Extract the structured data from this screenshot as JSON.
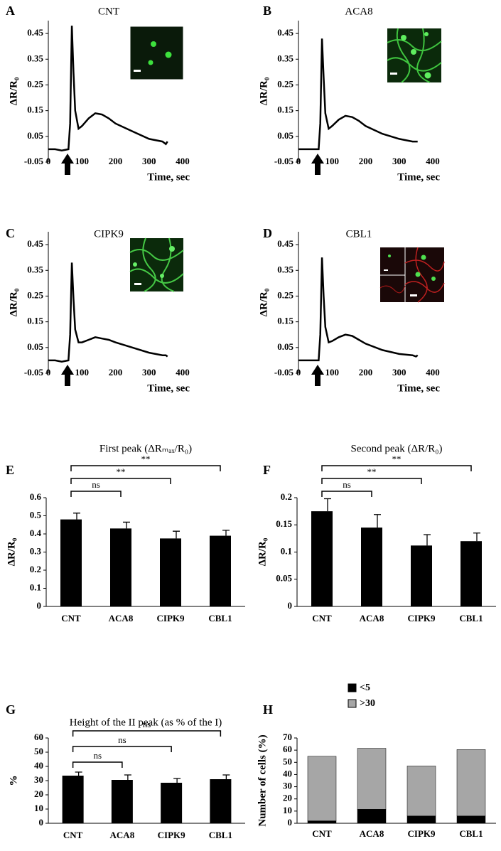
{
  "chart_data": [
    {
      "type": "line",
      "panel": "A",
      "title": "CNT",
      "xlabel": "Time, sec",
      "ylabel": "ΔR/R₀",
      "x": [
        0,
        20,
        40,
        60,
        65,
        70,
        75,
        80,
        90,
        100,
        120,
        140,
        160,
        180,
        200,
        250,
        300,
        340,
        350,
        355
      ],
      "series": [
        {
          "color": "#000000",
          "values": [
            0,
            0,
            -0.005,
            0,
            0.1,
            0.48,
            0.3,
            0.15,
            0.08,
            0.09,
            0.12,
            0.14,
            0.135,
            0.12,
            0.1,
            0.07,
            0.04,
            0.03,
            0.02,
            0.03
          ]
        }
      ],
      "xlim": [
        0,
        400
      ],
      "xticks": [
        0,
        100,
        200,
        300,
        400
      ],
      "ylim": [
        -0.05,
        0.5
      ],
      "yticks": [
        -0.05,
        0.05,
        0.15,
        0.25,
        0.35,
        0.45
      ]
    },
    {
      "type": "line",
      "panel": "B",
      "title": "ACA8",
      "xlabel": "Time, sec",
      "ylabel": "ΔR/R₀",
      "x": [
        0,
        20,
        40,
        60,
        65,
        70,
        75,
        80,
        90,
        100,
        120,
        140,
        160,
        180,
        200,
        250,
        300,
        340,
        350,
        355
      ],
      "series": [
        {
          "color": "#000000",
          "values": [
            0,
            0,
            0,
            0,
            0.1,
            0.43,
            0.28,
            0.14,
            0.08,
            0.09,
            0.115,
            0.13,
            0.125,
            0.11,
            0.09,
            0.06,
            0.04,
            0.03,
            0.03,
            0.03
          ]
        }
      ],
      "xlim": [
        0,
        400
      ],
      "xticks": [
        0,
        100,
        200,
        300,
        400
      ],
      "ylim": [
        -0.05,
        0.5
      ],
      "yticks": [
        -0.05,
        0.05,
        0.15,
        0.25,
        0.35,
        0.45
      ]
    },
    {
      "type": "line",
      "panel": "C",
      "title": "CIPK9",
      "xlabel": "Time, sec",
      "ylabel": "ΔR/R₀",
      "x": [
        0,
        20,
        40,
        60,
        65,
        70,
        75,
        80,
        90,
        100,
        120,
        140,
        160,
        180,
        200,
        250,
        300,
        340,
        350,
        355
      ],
      "series": [
        {
          "color": "#000000",
          "values": [
            0,
            0,
            -0.005,
            0,
            0.1,
            0.38,
            0.24,
            0.12,
            0.07,
            0.07,
            0.08,
            0.09,
            0.085,
            0.08,
            0.07,
            0.05,
            0.03,
            0.02,
            0.02,
            0.015
          ]
        }
      ],
      "xlim": [
        0,
        400
      ],
      "xticks": [
        0,
        100,
        200,
        300,
        400
      ],
      "ylim": [
        -0.05,
        0.5
      ],
      "yticks": [
        -0.05,
        0.05,
        0.15,
        0.25,
        0.35,
        0.45
      ]
    },
    {
      "type": "line",
      "panel": "D",
      "title": "CBL1",
      "xlabel": "Time, sec",
      "ylabel": "ΔR/R₀",
      "x": [
        0,
        20,
        40,
        60,
        65,
        70,
        75,
        80,
        90,
        100,
        120,
        140,
        160,
        180,
        200,
        250,
        300,
        340,
        350,
        355
      ],
      "series": [
        {
          "color": "#000000",
          "values": [
            0,
            0,
            0,
            0,
            0.1,
            0.4,
            0.25,
            0.13,
            0.07,
            0.075,
            0.09,
            0.1,
            0.095,
            0.08,
            0.065,
            0.04,
            0.025,
            0.02,
            0.015,
            0.02
          ]
        }
      ],
      "xlim": [
        0,
        400
      ],
      "xticks": [
        0,
        100,
        200,
        300,
        400
      ],
      "ylim": [
        -0.05,
        0.5
      ],
      "yticks": [
        -0.05,
        0.05,
        0.15,
        0.25,
        0.35,
        0.45
      ]
    },
    {
      "type": "bar",
      "panel": "E",
      "title": "First peak (ΔRₘₐₓ/R₀)",
      "ylabel": "ΔR/R₀",
      "categories": [
        "CNT",
        "ACA8",
        "CIPK9",
        "CBL1"
      ],
      "values": [
        0.48,
        0.43,
        0.375,
        0.39
      ],
      "errors": [
        0.035,
        0.035,
        0.04,
        0.03
      ],
      "significance": [
        null,
        "ns",
        "**",
        "**"
      ],
      "color": "#000000",
      "ylim": [
        0,
        0.6
      ],
      "yticks": [
        0,
        0.1,
        0.2,
        0.3,
        0.4,
        0.5,
        0.6
      ]
    },
    {
      "type": "bar",
      "panel": "F",
      "title": "Second peak (ΔR/R₀)",
      "ylabel": "ΔR/R₀",
      "categories": [
        "CNT",
        "ACA8",
        "CIPK9",
        "CBL1"
      ],
      "values": [
        0.175,
        0.145,
        0.112,
        0.12
      ],
      "errors": [
        0.023,
        0.024,
        0.02,
        0.015
      ],
      "significance": [
        null,
        "ns",
        "**",
        "**"
      ],
      "color": "#000000",
      "ylim": [
        0,
        0.2
      ],
      "yticks": [
        0,
        0.05,
        0.1,
        0.15,
        0.2
      ]
    },
    {
      "type": "bar",
      "panel": "G",
      "title": "Height of the II peak (as % of the I)",
      "ylabel": "%",
      "categories": [
        "CNT",
        "ACA8",
        "CIPK9",
        "CBL1"
      ],
      "values": [
        33.5,
        30.5,
        28.5,
        31
      ],
      "errors": [
        2.5,
        3.5,
        3,
        3
      ],
      "significance": [
        null,
        "ns",
        "ns",
        "ns"
      ],
      "color": "#000000",
      "ylim": [
        0,
        60
      ],
      "yticks": [
        0,
        10,
        20,
        30,
        40,
        50,
        60
      ]
    },
    {
      "type": "stacked_bar",
      "panel": "H",
      "ylabel": "Number of cells (%)",
      "categories": [
        "CNT",
        "ACA8",
        "CIPK9",
        "CBL1"
      ],
      "series": [
        {
          "name": "<5",
          "color": "#000000",
          "values": [
            2,
            11.5,
            6,
            6
          ]
        },
        {
          "name": ">30",
          "color": "#a6a6a6",
          "values": [
            53,
            50,
            41,
            54.5
          ]
        }
      ],
      "ylim": [
        0,
        70
      ],
      "yticks": [
        0,
        10,
        20,
        30,
        40,
        50,
        60,
        70
      ]
    }
  ]
}
